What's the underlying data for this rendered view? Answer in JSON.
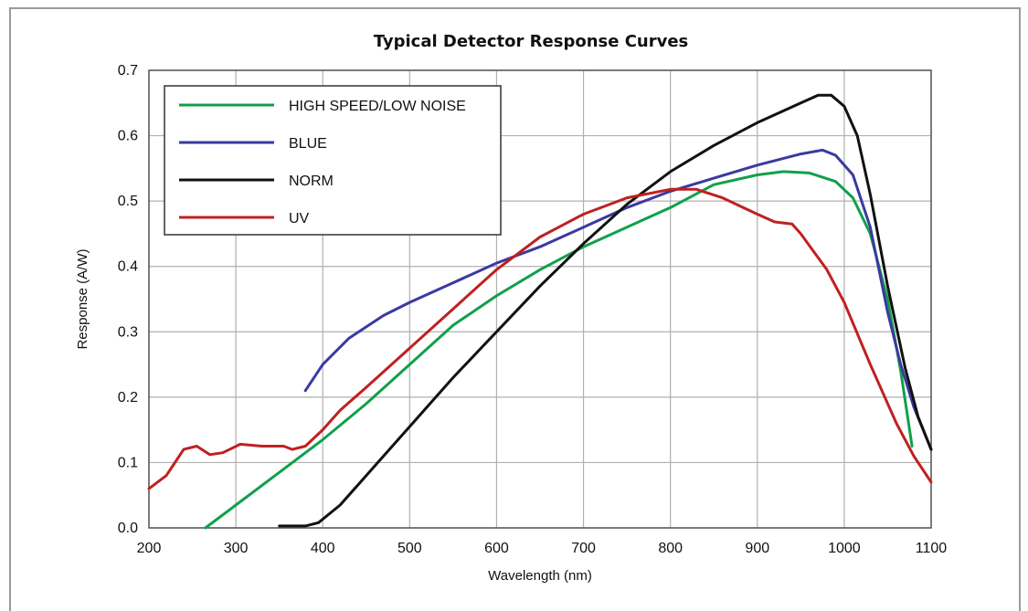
{
  "chart_data": {
    "type": "line",
    "title": "Typical Detector Response Curves",
    "xlabel": "Wavelength (nm)",
    "ylabel": "Response (A/W)",
    "xlim": [
      200,
      1100
    ],
    "ylim": [
      0,
      0.7
    ],
    "x_ticks": [
      "200",
      "300",
      "400",
      "500",
      "600",
      "700",
      "800",
      "900",
      "1000",
      "1100"
    ],
    "y_ticks": [
      "0.0",
      "0.1",
      "0.2",
      "0.3",
      "0.4",
      "0.5",
      "0.6",
      "0.7"
    ],
    "grid": true,
    "legend_placement": "top-left",
    "series": [
      {
        "name": "HIGH SPEED/LOW NOISE",
        "color": "#10a04a",
        "points": [
          [
            265,
            0
          ],
          [
            300,
            0.035
          ],
          [
            350,
            0.085
          ],
          [
            400,
            0.135
          ],
          [
            450,
            0.19
          ],
          [
            500,
            0.25
          ],
          [
            550,
            0.31
          ],
          [
            600,
            0.355
          ],
          [
            650,
            0.395
          ],
          [
            700,
            0.43
          ],
          [
            750,
            0.46
          ],
          [
            800,
            0.49
          ],
          [
            850,
            0.525
          ],
          [
            900,
            0.54
          ],
          [
            930,
            0.545
          ],
          [
            960,
            0.543
          ],
          [
            990,
            0.53
          ],
          [
            1010,
            0.505
          ],
          [
            1030,
            0.45
          ],
          [
            1050,
            0.35
          ],
          [
            1065,
            0.24
          ],
          [
            1078,
            0.125
          ]
        ]
      },
      {
        "name": "BLUE",
        "color": "#3a3aa0",
        "points": [
          [
            380,
            0.21
          ],
          [
            400,
            0.25
          ],
          [
            430,
            0.29
          ],
          [
            470,
            0.325
          ],
          [
            500,
            0.345
          ],
          [
            550,
            0.375
          ],
          [
            600,
            0.405
          ],
          [
            650,
            0.43
          ],
          [
            700,
            0.46
          ],
          [
            750,
            0.49
          ],
          [
            800,
            0.515
          ],
          [
            850,
            0.535
          ],
          [
            900,
            0.555
          ],
          [
            950,
            0.572
          ],
          [
            975,
            0.578
          ],
          [
            990,
            0.57
          ],
          [
            1010,
            0.54
          ],
          [
            1030,
            0.46
          ],
          [
            1050,
            0.33
          ],
          [
            1065,
            0.25
          ],
          [
            1080,
            0.185
          ],
          [
            1100,
            0.12
          ]
        ]
      },
      {
        "name": "NORM",
        "color": "#111111",
        "points": [
          [
            350,
            0.003
          ],
          [
            380,
            0.003
          ],
          [
            395,
            0.008
          ],
          [
            420,
            0.035
          ],
          [
            450,
            0.08
          ],
          [
            500,
            0.155
          ],
          [
            550,
            0.23
          ],
          [
            600,
            0.3
          ],
          [
            650,
            0.37
          ],
          [
            700,
            0.435
          ],
          [
            750,
            0.495
          ],
          [
            800,
            0.545
          ],
          [
            850,
            0.585
          ],
          [
            900,
            0.62
          ],
          [
            950,
            0.65
          ],
          [
            970,
            0.662
          ],
          [
            985,
            0.662
          ],
          [
            1000,
            0.645
          ],
          [
            1015,
            0.6
          ],
          [
            1030,
            0.51
          ],
          [
            1050,
            0.37
          ],
          [
            1070,
            0.245
          ],
          [
            1085,
            0.17
          ],
          [
            1100,
            0.12
          ]
        ]
      },
      {
        "name": "UV",
        "color": "#c02020",
        "points": [
          [
            200,
            0.06
          ],
          [
            220,
            0.08
          ],
          [
            240,
            0.12
          ],
          [
            255,
            0.125
          ],
          [
            270,
            0.112
          ],
          [
            285,
            0.115
          ],
          [
            305,
            0.128
          ],
          [
            330,
            0.125
          ],
          [
            355,
            0.125
          ],
          [
            365,
            0.12
          ],
          [
            380,
            0.125
          ],
          [
            400,
            0.15
          ],
          [
            420,
            0.18
          ],
          [
            450,
            0.215
          ],
          [
            500,
            0.275
          ],
          [
            550,
            0.335
          ],
          [
            600,
            0.395
          ],
          [
            650,
            0.445
          ],
          [
            700,
            0.48
          ],
          [
            750,
            0.505
          ],
          [
            800,
            0.518
          ],
          [
            830,
            0.518
          ],
          [
            860,
            0.505
          ],
          [
            900,
            0.48
          ],
          [
            920,
            0.468
          ],
          [
            940,
            0.465
          ],
          [
            950,
            0.45
          ],
          [
            980,
            0.395
          ],
          [
            1000,
            0.345
          ],
          [
            1030,
            0.25
          ],
          [
            1060,
            0.16
          ],
          [
            1080,
            0.11
          ],
          [
            1100,
            0.07
          ]
        ]
      }
    ]
  }
}
